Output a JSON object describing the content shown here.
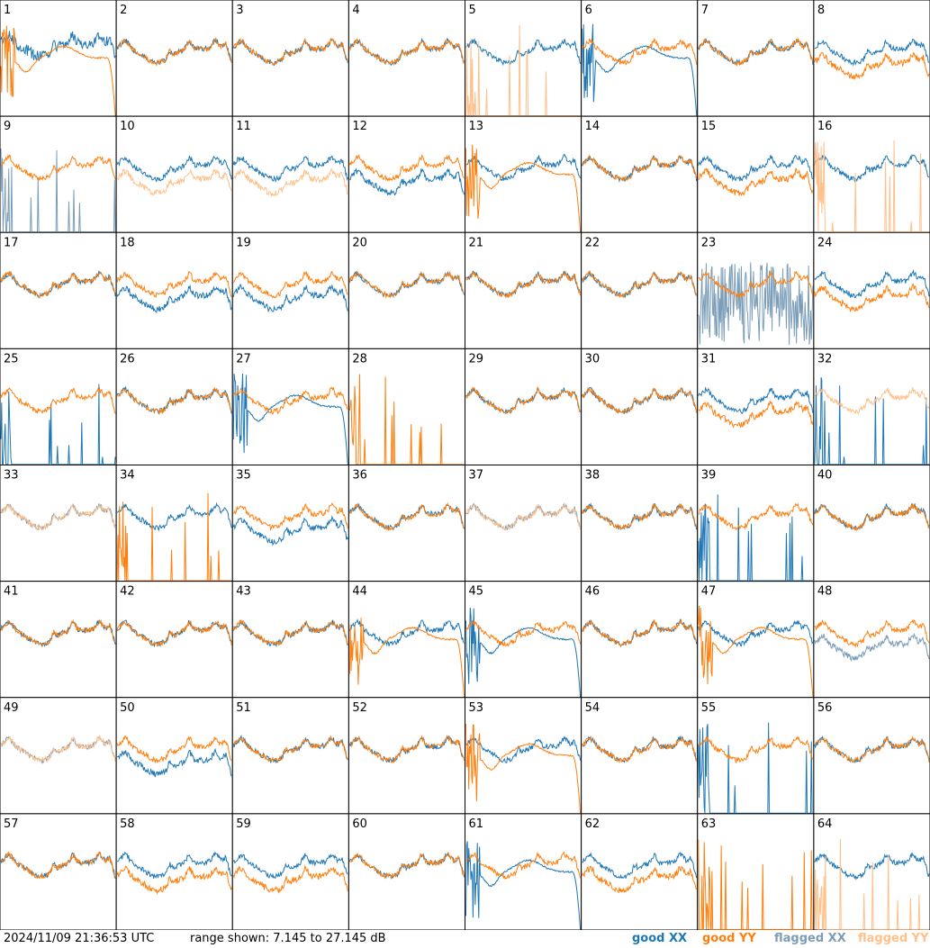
{
  "footer": {
    "timestamp": "2024/11/09 21:36:53 UTC",
    "range_text": "range shown: 7.145 to 27.145 dB"
  },
  "legend": [
    {
      "key": "gx",
      "label": "good XX",
      "color": "#1f77b4"
    },
    {
      "key": "gy",
      "label": "good YY",
      "color": "#ff7f0e"
    },
    {
      "key": "fx",
      "label": "flagged XX",
      "color": "#7b9db8"
    },
    {
      "key": "fy",
      "label": "flagged YY",
      "color": "#ffc08a"
    }
  ],
  "chart_data": {
    "type": "line",
    "rows": 8,
    "cols": 8,
    "ylim": [
      7.145,
      27.145
    ],
    "panels": [
      {
        "id": "1",
        "xx": "uneven",
        "yy": "rolloff"
      },
      {
        "id": "2",
        "xx": "good",
        "yy": "good"
      },
      {
        "id": "3",
        "xx": "good",
        "yy": "good"
      },
      {
        "id": "4",
        "xx": "good",
        "yy": "good"
      },
      {
        "id": "5",
        "xx": "good",
        "yy": "spike",
        "yy_flag": true
      },
      {
        "id": "6",
        "xx": "rolloff",
        "yy": "good"
      },
      {
        "id": "7",
        "xx": "good",
        "yy": "good"
      },
      {
        "id": "8",
        "xx": "good",
        "yy": "low"
      },
      {
        "id": "9",
        "xx": "spike",
        "xx_flag": true,
        "yy": "good"
      },
      {
        "id": "10",
        "xx": "good",
        "yy": "low",
        "yy_flag": true
      },
      {
        "id": "11",
        "xx": "good",
        "yy": "low",
        "yy_flag": true
      },
      {
        "id": "12",
        "xx": "low",
        "yy": "good"
      },
      {
        "id": "13",
        "xx": "good",
        "yy": "rolloff"
      },
      {
        "id": "14",
        "xx": "good",
        "yy": "good"
      },
      {
        "id": "15",
        "xx": "good",
        "yy": "low"
      },
      {
        "id": "16",
        "xx": "good",
        "yy": "spike",
        "yy_flag": true
      },
      {
        "id": "17",
        "xx": "good",
        "yy": "good"
      },
      {
        "id": "18",
        "xx": "low",
        "yy": "good"
      },
      {
        "id": "19",
        "xx": "low",
        "yy": "good"
      },
      {
        "id": "20",
        "xx": "good",
        "yy": "good"
      },
      {
        "id": "21",
        "xx": "good",
        "yy": "good"
      },
      {
        "id": "22",
        "xx": "good",
        "yy": "good"
      },
      {
        "id": "23",
        "xx": "noise",
        "xx_flag": true,
        "yy": "good"
      },
      {
        "id": "24",
        "xx": "good",
        "yy": "low"
      },
      {
        "id": "25",
        "xx": "spike",
        "yy": "good"
      },
      {
        "id": "26",
        "xx": "good",
        "yy": "good"
      },
      {
        "id": "27",
        "xx": "rolloff",
        "yy": "good"
      },
      {
        "id": "28",
        "xx": "none",
        "yy": "spike"
      },
      {
        "id": "29",
        "xx": "good",
        "yy": "good"
      },
      {
        "id": "30",
        "xx": "good",
        "yy": "good"
      },
      {
        "id": "31",
        "xx": "good",
        "yy": "low"
      },
      {
        "id": "32",
        "xx": "spike",
        "yy": "good",
        "yy_flag": true
      },
      {
        "id": "33",
        "xx": "good",
        "xx_flag": true,
        "yy": "good",
        "yy_flag": true
      },
      {
        "id": "34",
        "xx": "good",
        "yy": "spike"
      },
      {
        "id": "35",
        "xx": "low",
        "yy": "good"
      },
      {
        "id": "36",
        "xx": "good",
        "yy": "good"
      },
      {
        "id": "37",
        "xx": "good",
        "xx_flag": true,
        "yy": "good",
        "yy_flag": true
      },
      {
        "id": "38",
        "xx": "good",
        "yy": "good"
      },
      {
        "id": "39",
        "xx": "spike",
        "yy": "good"
      },
      {
        "id": "40",
        "xx": "good",
        "yy": "good"
      },
      {
        "id": "41",
        "xx": "good",
        "yy": "good"
      },
      {
        "id": "42",
        "xx": "good",
        "yy": "good"
      },
      {
        "id": "43",
        "xx": "good",
        "yy": "good"
      },
      {
        "id": "44",
        "xx": "good",
        "yy": "rolloff"
      },
      {
        "id": "45",
        "xx": "rolloff",
        "yy": "good"
      },
      {
        "id": "46",
        "xx": "good",
        "yy": "good"
      },
      {
        "id": "47",
        "xx": "good",
        "yy": "rolloff"
      },
      {
        "id": "48",
        "xx": "low",
        "xx_flag": true,
        "yy": "good"
      },
      {
        "id": "49",
        "xx": "good",
        "xx_flag": true,
        "yy": "good",
        "yy_flag": true
      },
      {
        "id": "50",
        "xx": "low",
        "yy": "good"
      },
      {
        "id": "51",
        "xx": "good",
        "yy": "good"
      },
      {
        "id": "52",
        "xx": "good",
        "yy": "good"
      },
      {
        "id": "53",
        "xx": "good",
        "yy": "rolloff"
      },
      {
        "id": "54",
        "xx": "good",
        "yy": "good"
      },
      {
        "id": "55",
        "xx": "spike",
        "yy": "good"
      },
      {
        "id": "56",
        "xx": "good",
        "yy": "good"
      },
      {
        "id": "57",
        "xx": "good",
        "yy": "good"
      },
      {
        "id": "58",
        "xx": "good",
        "yy": "low"
      },
      {
        "id": "59",
        "xx": "good",
        "yy": "low"
      },
      {
        "id": "60",
        "xx": "good",
        "yy": "good"
      },
      {
        "id": "61",
        "xx": "rolloff",
        "yy": "good"
      },
      {
        "id": "62",
        "xx": "good",
        "yy": "low"
      },
      {
        "id": "63",
        "xx": "none",
        "yy": "spike"
      },
      {
        "id": "64",
        "xx": "good",
        "yy": "spike",
        "yy_flag": true
      }
    ]
  }
}
